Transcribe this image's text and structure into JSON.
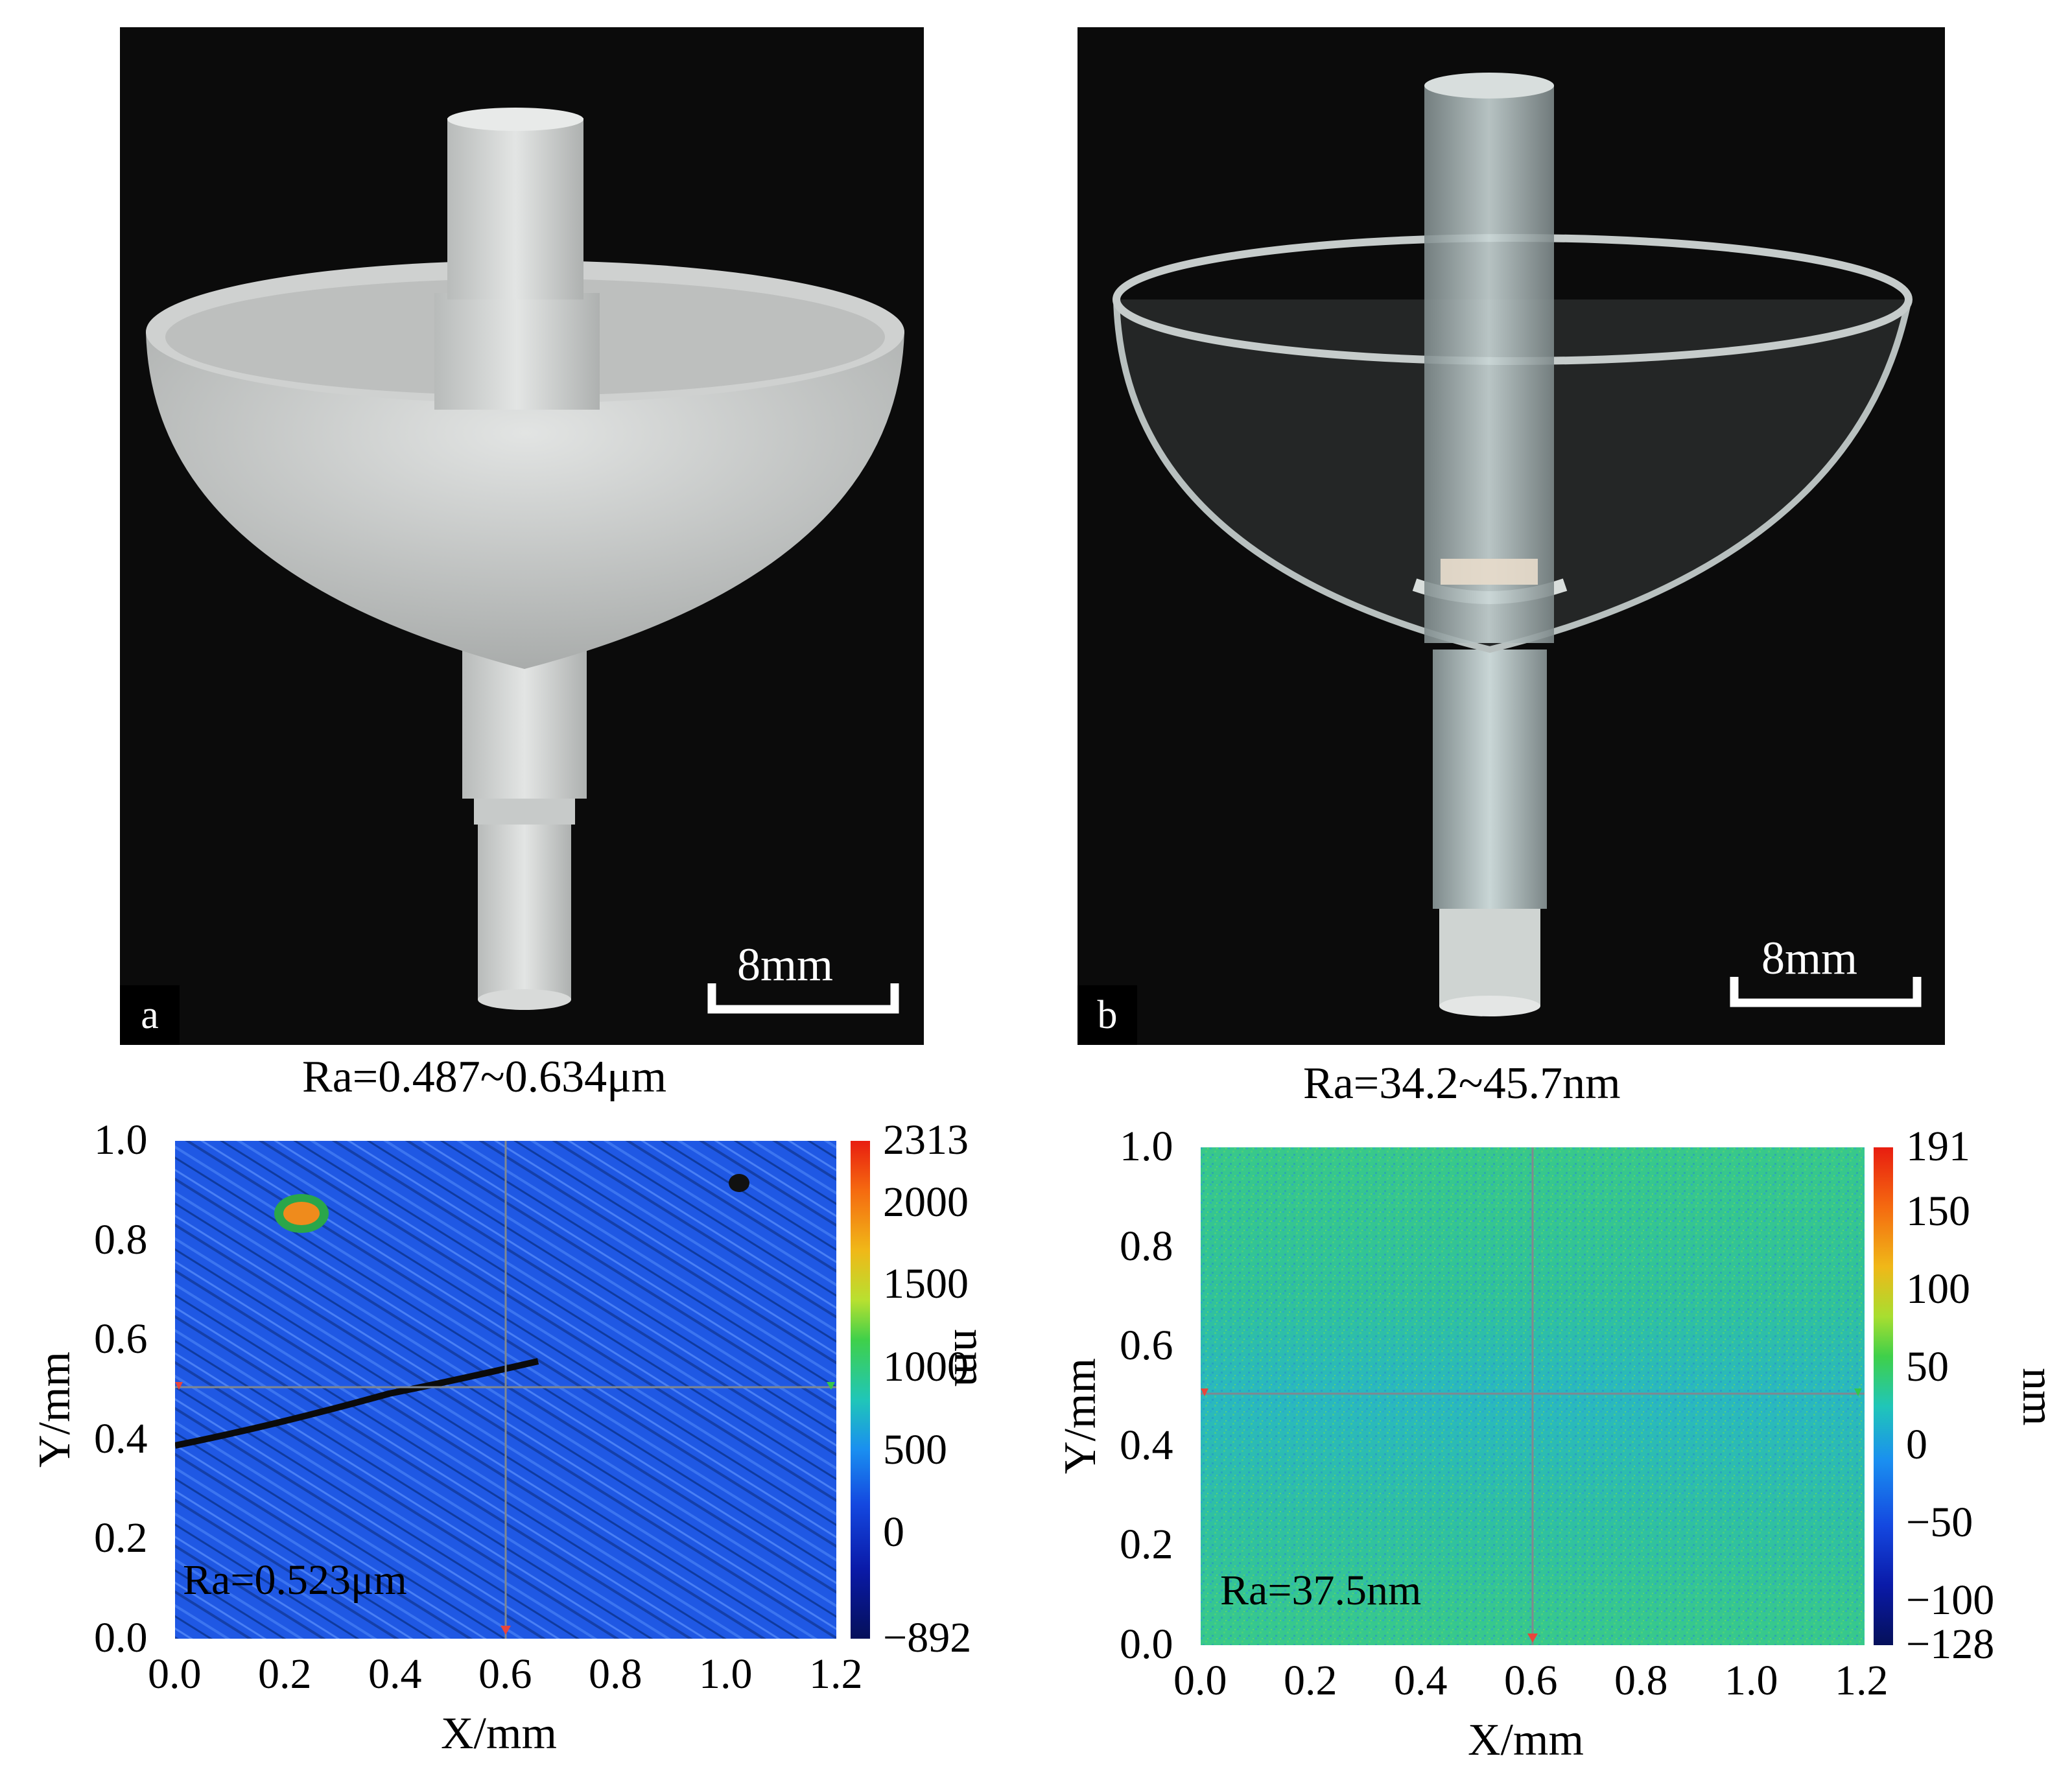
{
  "panel_a": {
    "label": "a",
    "scale_bar": "8mm",
    "ra_range": "Ra=0.487~0.634μm",
    "map": {
      "ra_inlay": "Ra=0.523μm",
      "xlabel": "X/mm",
      "ylabel": "Y/mm",
      "xticks": [
        "0.0",
        "0.2",
        "0.4",
        "0.6",
        "0.8",
        "1.0",
        "1.2"
      ],
      "yticks": [
        "1.0",
        "0.8",
        "0.6",
        "0.4",
        "0.2",
        "0.0"
      ],
      "colorbar_ticks": [
        "2313",
        "2000",
        "1500",
        "1000",
        "500",
        "0",
        "−892"
      ],
      "colorbar_unit": "nm"
    }
  },
  "panel_b": {
    "label": "b",
    "scale_bar": "8mm",
    "ra_range": "Ra=34.2~45.7nm",
    "map": {
      "ra_inlay": "Ra=37.5nm",
      "xlabel": "X/mm",
      "ylabel": "Y/mm",
      "xticks": [
        "0.0",
        "0.2",
        "0.4",
        "0.6",
        "0.8",
        "1.0",
        "1.2"
      ],
      "yticks": [
        "1.0",
        "0.8",
        "0.6",
        "0.4",
        "0.2",
        "0.0"
      ],
      "colorbar_ticks": [
        "191",
        "150",
        "100",
        "50",
        "0",
        "−50",
        "−100",
        "−128"
      ],
      "colorbar_unit": "nm"
    }
  }
}
